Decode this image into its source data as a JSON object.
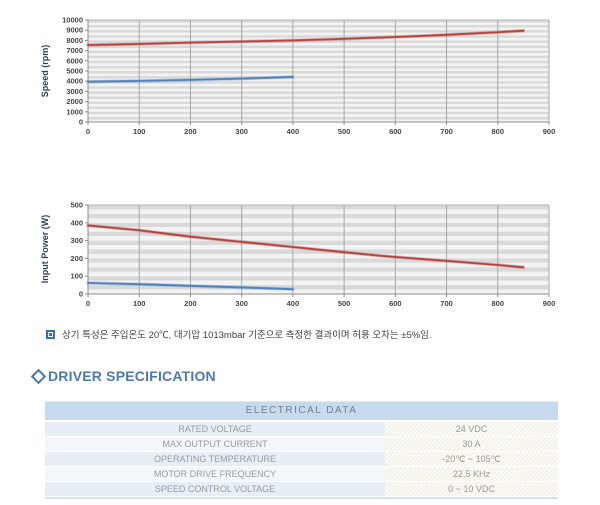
{
  "note": {
    "text": "상기 특성은 주입온도 20℃, 대기압 1013mbar 기준으로 측정한 결과이며 허용 오차는 ±5%임."
  },
  "section": {
    "title": "DRIVER SPECIFICATION"
  },
  "table": {
    "header": "ELECTRICAL DATA",
    "rows": [
      {
        "label": "RATED VOLTAGE",
        "value": "24 VDC"
      },
      {
        "label": "MAX OUTPUT CURRENT",
        "value": "30 A"
      },
      {
        "label": "OPERATING TEMPERATURE",
        "value": "-20℃ ~ 105℃"
      },
      {
        "label": "MOTOR DRIVE FREQUENCY",
        "value": "22.5 KHz"
      },
      {
        "label": "SPEED CONTROL VOLTAGE",
        "value": "0 ~ 10 VDC"
      }
    ]
  },
  "colors": {
    "red_series": "#b5433f",
    "blue_series": "#4f81bd",
    "plot_stripe_dark": "#d9d9d9",
    "plot_stripe_light": "#f3f3f3",
    "gridline_vertical": "#a2a8ae",
    "axis": "#8c8c8c",
    "header_band": "#c8dbee",
    "accent_blue": "#4577b5"
  },
  "chart_data": [
    {
      "type": "line",
      "title": "",
      "xlabel": "",
      "ylabel": "Speed (rpm)",
      "xlim": [
        0,
        900
      ],
      "ylim": [
        0,
        10000
      ],
      "x_ticks": [
        0,
        100,
        200,
        300,
        400,
        500,
        600,
        700,
        800,
        900
      ],
      "y_ticks": [
        0,
        1000,
        2000,
        3000,
        4000,
        5000,
        6000,
        7000,
        8000,
        9000,
        10000
      ],
      "y_minor": 250,
      "grid": true,
      "legend": "none",
      "series": [
        {
          "name": "series-1-red",
          "color": "#b5433f",
          "x": [
            0,
            100,
            200,
            300,
            400,
            500,
            600,
            700,
            800,
            850
          ],
          "y": [
            7550,
            7650,
            7780,
            7890,
            8000,
            8150,
            8330,
            8550,
            8800,
            8950
          ]
        },
        {
          "name": "series-2-blue",
          "color": "#4f81bd",
          "x": [
            0,
            100,
            200,
            300,
            400
          ],
          "y": [
            3950,
            4030,
            4130,
            4250,
            4420
          ]
        }
      ]
    },
    {
      "type": "line",
      "title": "",
      "xlabel": "",
      "ylabel": "Input  Power (W)",
      "xlim": [
        0,
        900
      ],
      "ylim": [
        0,
        500
      ],
      "x_ticks": [
        0,
        100,
        200,
        300,
        400,
        500,
        600,
        700,
        800,
        900
      ],
      "y_ticks": [
        0,
        100,
        200,
        300,
        400,
        500
      ],
      "y_minor": 25,
      "grid": true,
      "legend": "none",
      "series": [
        {
          "name": "series-1-red",
          "color": "#b5433f",
          "x": [
            0,
            100,
            200,
            300,
            400,
            500,
            570,
            600,
            700,
            800,
            850
          ],
          "y": [
            385,
            358,
            322,
            293,
            264,
            235,
            215,
            208,
            186,
            163,
            150
          ]
        },
        {
          "name": "series-2-blue",
          "color": "#4f81bd",
          "x": [
            0,
            100,
            200,
            300,
            400
          ],
          "y": [
            62,
            55,
            46,
            37,
            27
          ]
        }
      ]
    }
  ]
}
